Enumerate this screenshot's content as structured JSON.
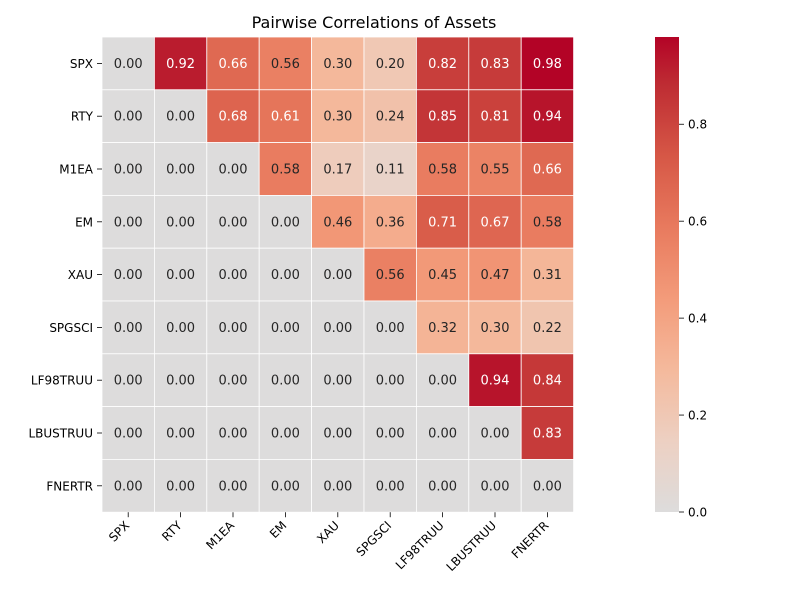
{
  "chart_data": {
    "type": "heatmap",
    "title": "Pairwise Correlations of Assets",
    "xlabel": "",
    "ylabel": "",
    "rows": [
      "SPX",
      "RTY",
      "M1EA",
      "EM",
      "XAU",
      "SPGSCI",
      "LF98TRUU",
      "LBUSTRUU",
      "FNERTR"
    ],
    "columns": [
      "SPX",
      "RTY",
      "M1EA",
      "EM",
      "XAU",
      "SPGSCI",
      "LF98TRUU",
      "LBUSTRUU",
      "FNERTR"
    ],
    "values": [
      [
        0.0,
        0.92,
        0.66,
        0.56,
        0.3,
        0.2,
        0.82,
        0.83,
        0.98
      ],
      [
        0.0,
        0.0,
        0.68,
        0.61,
        0.3,
        0.24,
        0.85,
        0.81,
        0.94
      ],
      [
        0.0,
        0.0,
        0.0,
        0.58,
        0.17,
        0.11,
        0.58,
        0.55,
        0.66
      ],
      [
        0.0,
        0.0,
        0.0,
        0.0,
        0.46,
        0.36,
        0.71,
        0.67,
        0.58
      ],
      [
        0.0,
        0.0,
        0.0,
        0.0,
        0.0,
        0.56,
        0.45,
        0.47,
        0.31
      ],
      [
        0.0,
        0.0,
        0.0,
        0.0,
        0.0,
        0.0,
        0.32,
        0.3,
        0.22
      ],
      [
        0.0,
        0.0,
        0.0,
        0.0,
        0.0,
        0.0,
        0.0,
        0.94,
        0.84
      ],
      [
        0.0,
        0.0,
        0.0,
        0.0,
        0.0,
        0.0,
        0.0,
        0.0,
        0.83
      ],
      [
        0.0,
        0.0,
        0.0,
        0.0,
        0.0,
        0.0,
        0.0,
        0.0,
        0.0
      ]
    ],
    "value_format": "2 decimals",
    "colormap": "coolwarm-centered",
    "color_range": [
      0.0,
      0.98
    ],
    "colorbar": {
      "ticks": [
        0.0,
        0.2,
        0.4,
        0.6,
        0.8
      ],
      "tick_labels": [
        "0.0",
        "0.2",
        "0.4",
        "0.6",
        "0.8"
      ],
      "placement": "right"
    },
    "grid": true,
    "legend": "none"
  }
}
